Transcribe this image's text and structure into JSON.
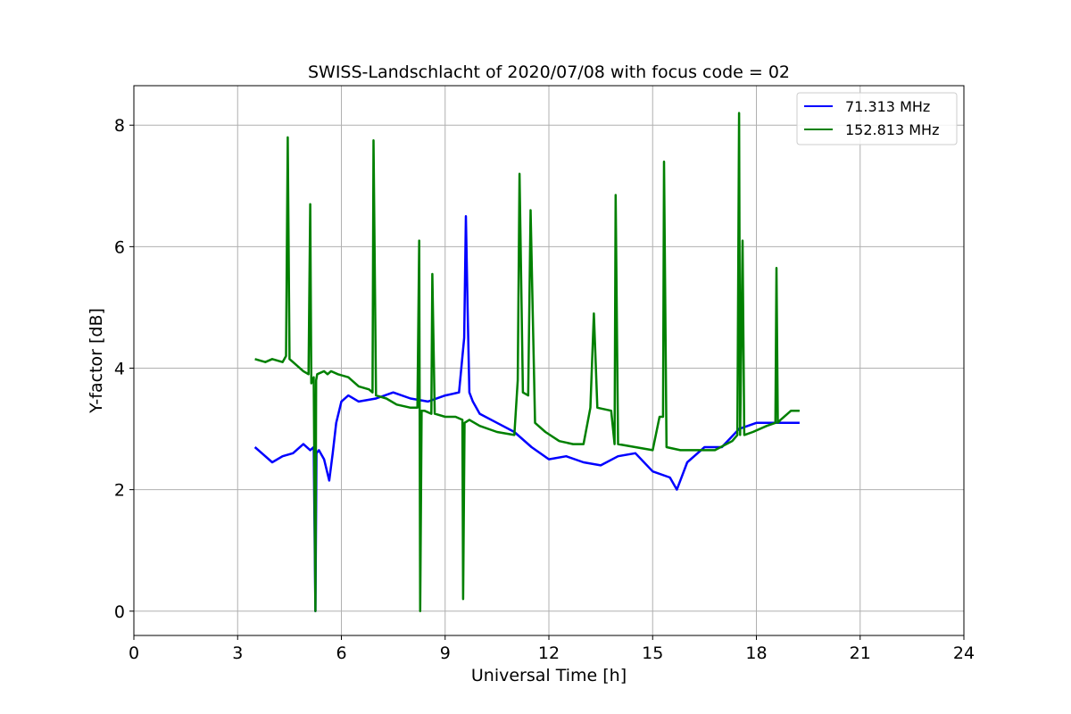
{
  "chart_data": {
    "type": "line",
    "title": "SWISS-Landschlacht of 2020/07/08 with focus code = 02",
    "xlabel": "Universal Time [h]",
    "ylabel": "Y-factor [dB]",
    "xlim": [
      0,
      24
    ],
    "ylim": [
      -0.4,
      8.65
    ],
    "xticks": [
      0,
      3,
      6,
      9,
      12,
      15,
      18,
      21,
      24
    ],
    "xtick_labels": [
      "0",
      "3",
      "6",
      "9",
      "12",
      "15",
      "18",
      "21",
      "24"
    ],
    "yticks": [
      0,
      2,
      4,
      6,
      8
    ],
    "ytick_labels": [
      "0",
      "2",
      "4",
      "6",
      "8"
    ],
    "grid": true,
    "legend_position": "top-right",
    "series": [
      {
        "name": " 71.313 MHz",
        "color": "#0000ff",
        "x": [
          3.5,
          3.7,
          4.0,
          4.3,
          4.6,
          4.9,
          5.1,
          5.2,
          5.25,
          5.28,
          5.35,
          5.5,
          5.65,
          5.75,
          5.85,
          6.0,
          6.2,
          6.5,
          7.0,
          7.5,
          8.0,
          8.5,
          9.0,
          9.4,
          9.55,
          9.6,
          9.65,
          9.7,
          9.8,
          10.0,
          10.5,
          11.0,
          11.5,
          12.0,
          12.5,
          13.0,
          13.5,
          14.0,
          14.5,
          15.0,
          15.5,
          15.7,
          16.0,
          16.5,
          17.0,
          17.5,
          18.0,
          18.5,
          19.0,
          19.25
        ],
        "y": [
          2.7,
          2.6,
          2.45,
          2.55,
          2.6,
          2.75,
          2.65,
          2.7,
          0.0,
          2.6,
          2.65,
          2.5,
          2.15,
          2.6,
          3.1,
          3.45,
          3.55,
          3.45,
          3.5,
          3.6,
          3.5,
          3.45,
          3.55,
          3.6,
          4.5,
          6.5,
          5.0,
          3.6,
          3.45,
          3.25,
          3.1,
          2.95,
          2.7,
          2.5,
          2.55,
          2.45,
          2.4,
          2.55,
          2.6,
          2.3,
          2.2,
          2.0,
          2.45,
          2.7,
          2.7,
          3.0,
          3.1,
          3.1,
          3.1,
          3.1
        ]
      },
      {
        "name": "152.813 MHz",
        "color": "#008000",
        "x": [
          3.5,
          3.8,
          4.0,
          4.3,
          4.4,
          4.45,
          4.5,
          4.6,
          4.9,
          5.05,
          5.1,
          5.13,
          5.2,
          5.25,
          5.27,
          5.3,
          5.5,
          5.6,
          5.7,
          5.9,
          6.2,
          6.5,
          6.8,
          6.9,
          6.93,
          7.0,
          7.3,
          7.6,
          8.0,
          8.2,
          8.25,
          8.28,
          8.32,
          8.4,
          8.6,
          8.63,
          8.7,
          9.0,
          9.3,
          9.5,
          9.52,
          9.56,
          9.7,
          10.0,
          10.5,
          11.0,
          11.1,
          11.15,
          11.25,
          11.4,
          11.47,
          11.6,
          11.9,
          12.3,
          12.7,
          13.0,
          13.2,
          13.3,
          13.4,
          13.8,
          13.9,
          13.93,
          14.0,
          14.5,
          15.0,
          15.2,
          15.3,
          15.33,
          15.4,
          15.8,
          16.3,
          16.8,
          17.3,
          17.45,
          17.5,
          17.53,
          17.6,
          17.65,
          17.9,
          18.3,
          18.55,
          18.58,
          18.62,
          18.7,
          19.0,
          19.25
        ],
        "y": [
          4.15,
          4.1,
          4.15,
          4.1,
          4.2,
          7.8,
          4.15,
          4.1,
          3.95,
          3.9,
          6.7,
          3.75,
          3.85,
          0.0,
          3.8,
          3.9,
          3.95,
          3.9,
          3.95,
          3.9,
          3.85,
          3.7,
          3.65,
          3.6,
          7.75,
          3.55,
          3.5,
          3.4,
          3.35,
          3.35,
          6.1,
          0.0,
          3.3,
          3.3,
          3.25,
          5.55,
          3.25,
          3.2,
          3.2,
          3.15,
          0.2,
          3.1,
          3.15,
          3.05,
          2.95,
          2.9,
          3.8,
          7.2,
          3.6,
          3.55,
          6.6,
          3.1,
          2.95,
          2.8,
          2.75,
          2.75,
          3.35,
          4.9,
          3.35,
          3.3,
          2.75,
          6.85,
          2.75,
          2.7,
          2.65,
          3.2,
          3.2,
          7.4,
          2.7,
          2.65,
          2.65,
          2.65,
          2.8,
          2.9,
          8.2,
          2.9,
          6.1,
          2.9,
          2.95,
          3.05,
          3.1,
          5.65,
          3.1,
          3.15,
          3.3,
          3.3
        ]
      }
    ]
  }
}
